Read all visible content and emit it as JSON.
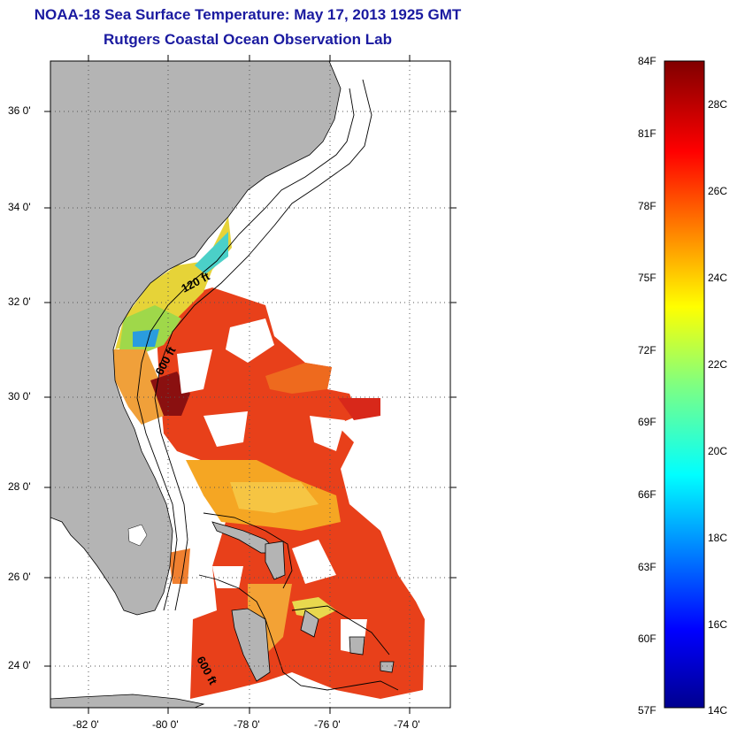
{
  "title": "NOAA-18 Sea Surface Temperature:  May 17, 2013 1925 GMT",
  "subtitle": "Rutgers Coastal Ocean Observation Lab",
  "map": {
    "lat_labels": [
      "36 0'",
      "34 0'",
      "32 0'",
      "30 0'",
      "28 0'",
      "26 0'",
      "24 0'"
    ],
    "lon_labels": [
      "-82 0'",
      "-80 0'",
      "-78 0'",
      "-76 0'",
      "-74 0'"
    ],
    "contour_labels": [
      "120 ft",
      "600 ft",
      "600 ft"
    ],
    "land_color": "#b4b4b4"
  },
  "colorbar": {
    "fahrenheit": [
      "84F",
      "81F",
      "78F",
      "75F",
      "72F",
      "69F",
      "66F",
      "63F",
      "60F",
      "57F"
    ],
    "celsius": [
      "28C",
      "26C",
      "24C",
      "22C",
      "20C",
      "18C",
      "16C",
      "14C"
    ],
    "colormap": "jet"
  }
}
